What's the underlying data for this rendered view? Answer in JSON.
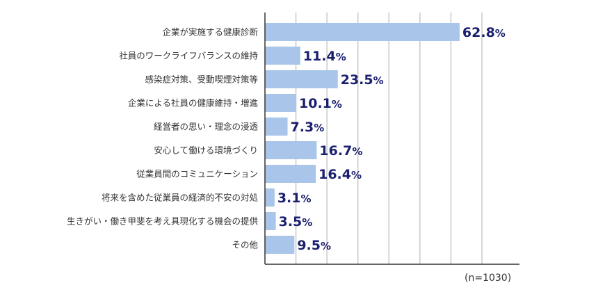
{
  "chart_data": {
    "type": "bar",
    "orientation": "horizontal",
    "categories": [
      "企業が実施する健康診断",
      "社員のワークライフバランスの維持",
      "感染症対策、受動喫煙対策等",
      "企業による社員の健康維持・増進",
      "経営者の思い・理念の浸透",
      "安心して働ける環境づくり",
      "従業員間のコミュニケーション",
      "将来を含めた従業員の経済的不安の対処",
      "生きがい・働き甲斐を考え具現化する機会の提供",
      "その他"
    ],
    "values": [
      62.8,
      11.4,
      23.5,
      10.1,
      7.3,
      16.7,
      16.4,
      3.1,
      3.5,
      9.5
    ],
    "unit": "%",
    "xlim": [
      0,
      70
    ],
    "grid": true,
    "bar_color": "#a9c5e9",
    "value_label_color": "#1a1f6e",
    "grid_color": "#c8c8c8"
  },
  "note": "(n=1030)"
}
